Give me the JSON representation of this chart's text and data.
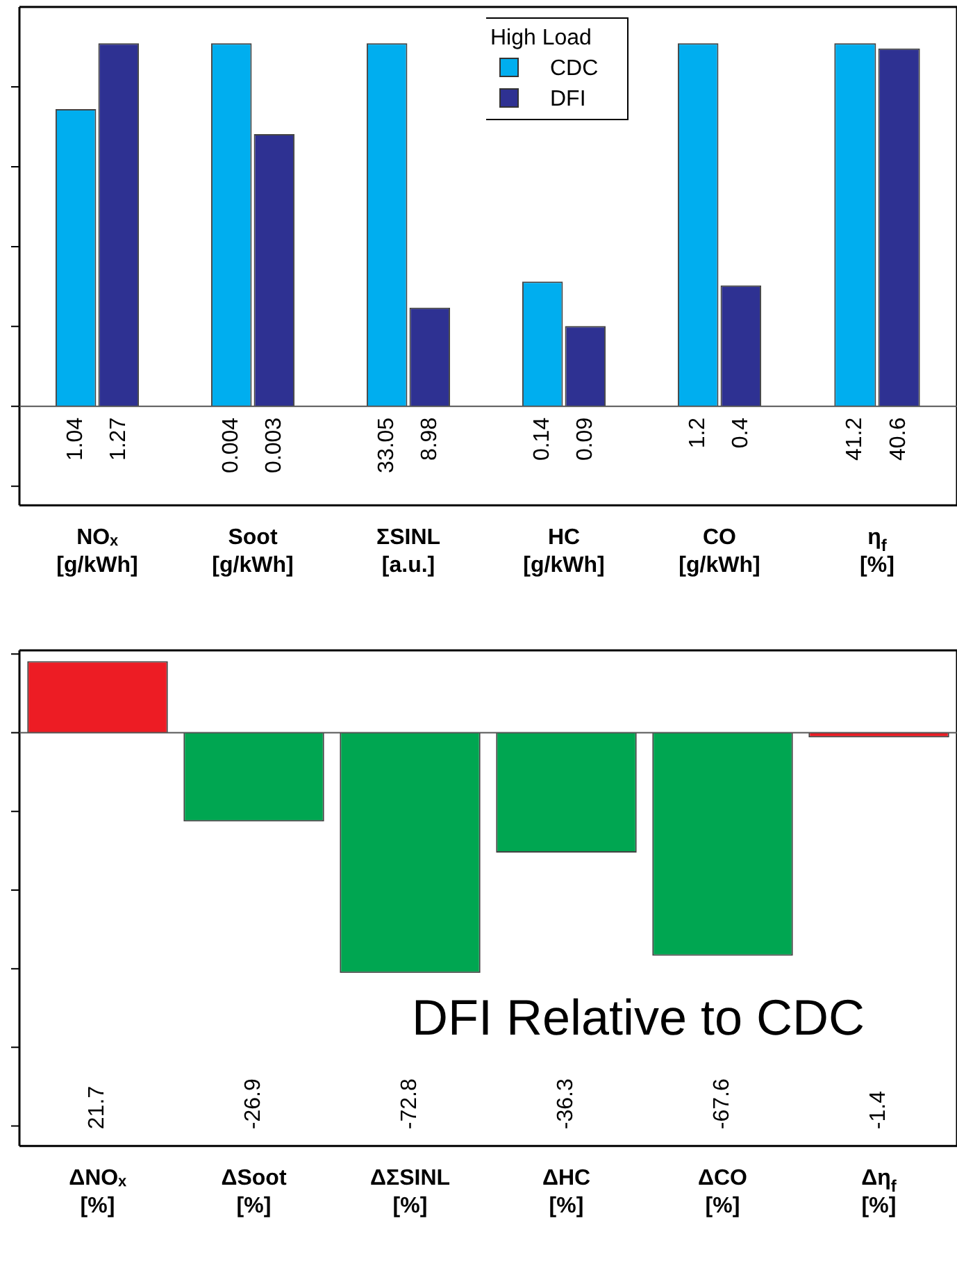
{
  "chart_data": [
    {
      "type": "bar",
      "tick_labels": "x",
      "data_labels": true,
      "categories": [
        "NOₓ\n[g/kWh]"
      ],
      "series": [
        {
          "color": "#00aeef",
          "values": [
            1.04
          ]
        },
        {
          "color": "#2e3192",
          "values": [
            1.27
          ]
        }
      ]
    },
    {
      "type": "bar",
      "tick_labels": "x",
      "data_labels": true,
      "categories": [
        "Soot\n[g/kWh]"
      ],
      "series": [
        {
          "color": "#00aeef",
          "values": [
            0.004
          ]
        },
        {
          "color": "#2e3192",
          "values": [
            0.003
          ]
        }
      ]
    },
    {
      "type": "bar",
      "tick_labels": "x",
      "data_labels": true,
      "categories": [
        "ΣSINL\n[a.u.]"
      ],
      "series": [
        {
          "color": "#00aeef",
          "values": [
            33.05
          ]
        },
        {
          "color": "#2e3192",
          "values": [
            8.98
          ]
        }
      ]
    },
    {
      "type": "bar",
      "tick_labels": "x",
      "data_labels": true,
      "legend": "top",
      "legend_title": "High Load",
      "categories": [
        "HC\n[g/kWh]"
      ],
      "series": [
        {
          "name": "CDC",
          "color": "#00aeef",
          "values": [
            0.14
          ]
        },
        {
          "name": "DFI",
          "color": "#2e3192",
          "values": [
            0.09
          ]
        }
      ]
    },
    {
      "type": "bar",
      "tick_labels": "x",
      "data_labels": true,
      "categories": [
        "CO\n[g/kWh]"
      ],
      "series": [
        {
          "color": "#00aeef",
          "values": [
            1.2
          ]
        },
        {
          "color": "#2e3192",
          "values": [
            0.4
          ]
        }
      ]
    },
    {
      "type": "bar",
      "tick_labels": "x",
      "data_labels": true,
      "categories": [
        "η$_{f}$\n[%]"
      ],
      "series": [
        {
          "color": "#00aeef",
          "values": [
            41.2
          ]
        },
        {
          "color": "#2e3192",
          "values": [
            40.6
          ]
        }
      ]
    },
    {
      "type": "bar",
      "tick_labels": "x",
      "categories": [
        "ΔNOₓ\n[%]",
        "ΔSoot\n[%]",
        "ΔΣSINL\n[%]",
        "ΔHC\n[%]",
        "ΔCO\n[%]",
        "Δη$_{f}$\n[%]"
      ],
      "values": [
        21.7,
        -26.9,
        -72.8,
        -36.3,
        -67.6,
        -1.4
      ],
      "colors": [
        "#ed1c24",
        "#00a651",
        "#00a651",
        "#00a651",
        "#00a651",
        "#ed1c24"
      ],
      "value_labels": [
        "21.7",
        "-26.9",
        "-72.8",
        "-36.3",
        "-67.6",
        "-1.4"
      ],
      "annotations": [
        "DFI Relative to CDC"
      ]
    }
  ]
}
